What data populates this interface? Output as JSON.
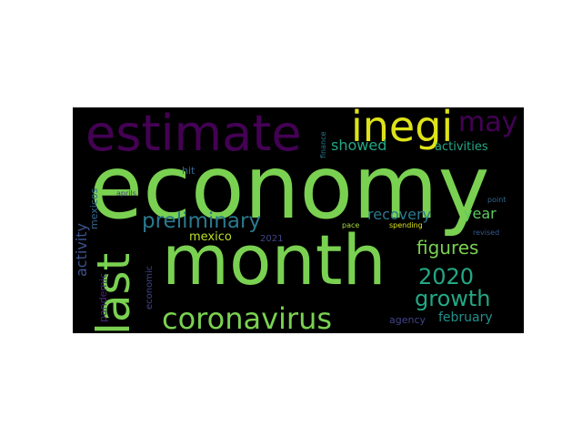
{
  "words": [
    {
      "text": "economy",
      "color": "#7ad151"
    },
    {
      "text": "month",
      "color": "#7ad151"
    },
    {
      "text": "estimate",
      "color": "#440154"
    },
    {
      "text": "inegi",
      "color": "#dde318"
    },
    {
      "text": "last",
      "color": "#7ad151"
    },
    {
      "text": "coronavirus",
      "color": "#7ad151"
    },
    {
      "text": "preliminary",
      "color": "#2a788e"
    },
    {
      "text": "may",
      "color": "#440154"
    },
    {
      "text": "2020",
      "color": "#22a884"
    },
    {
      "text": "growth",
      "color": "#22a884"
    },
    {
      "text": "figures",
      "color": "#7ad151"
    },
    {
      "text": "showed",
      "color": "#22a884"
    },
    {
      "text": "recovery",
      "color": "#2a788e"
    },
    {
      "text": "year",
      "color": "#5ec962"
    },
    {
      "text": "activities",
      "color": "#22a884"
    },
    {
      "text": "mexico",
      "color": "#bddf26"
    },
    {
      "text": "activity",
      "color": "#3b528b"
    },
    {
      "text": "february",
      "color": "#21918c"
    },
    {
      "text": "agency",
      "color": "#414487"
    },
    {
      "text": "pandemic",
      "color": "#482878"
    },
    {
      "text": "economic",
      "color": "#414487"
    },
    {
      "text": "mexicos",
      "color": "#31688e"
    },
    {
      "text": "hit",
      "color": "#31688e"
    },
    {
      "text": "2021",
      "color": "#414487"
    },
    {
      "text": "finance",
      "color": "#2a788e"
    },
    {
      "text": "aprils",
      "color": "#44397e"
    },
    {
      "text": "point",
      "color": "#31688e"
    },
    {
      "text": "revised",
      "color": "#38598c"
    },
    {
      "text": "pace",
      "color": "#a5db36"
    },
    {
      "text": "spending",
      "color": "#dde318"
    }
  ]
}
